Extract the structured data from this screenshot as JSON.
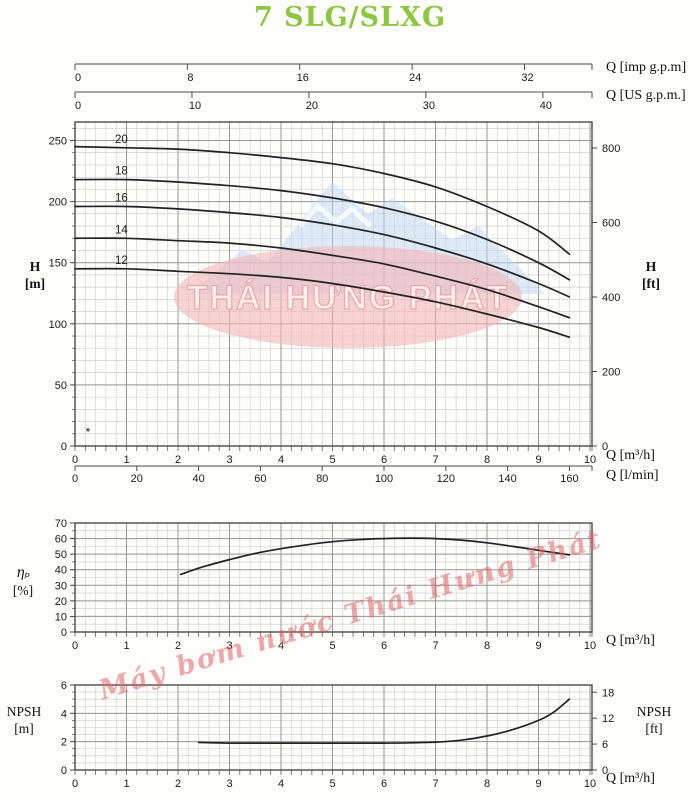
{
  "title": "7 SLG/SLXG",
  "colors": {
    "title": "#8dc63f",
    "curve": "#222222",
    "grid_minor": "#cccccc",
    "grid_major": "#979797",
    "border": "#4a4a4a",
    "tick_text": "#1a1a1a",
    "watermark_mountain": "#bdd5ef",
    "watermark_snow": "#ffffff",
    "watermark_ellipse": "#f3b5b8",
    "watermark_ellipse_text": "#fcf3f3",
    "watermark_ellipse_text_stroke": "#eba3a7",
    "watermark_script": "#e06666"
  },
  "watermark": {
    "ellipse_text": "THÁI HƯNG PHÁT",
    "script_text": "Máy bơm nước Thái Hưng Phát"
  },
  "labels": {
    "q_imp": "Q [imp g.p.m]",
    "q_us": "Q [US g.p.m.]",
    "q_m3h": "Q [m³/h]",
    "q_lmin": "Q [l/min]",
    "h_m_1": "H",
    "h_m_2": "[m]",
    "h_ft_1": "H",
    "h_ft_2": "[ft]",
    "eta_1": "ηₚ",
    "eta_2": "[%]",
    "npsh_m_1": "NPSH",
    "npsh_m_2": "[m]",
    "npsh_ft_1": "NPSH",
    "npsh_ft_2": "[ft]",
    "star": "*"
  },
  "top_scales": [
    {
      "label": "Q [imp g.p.m]",
      "units_per_m3h": 3.6662,
      "ticks": [
        0,
        8,
        16,
        24,
        32
      ]
    },
    {
      "label": "Q [US g.p.m.]",
      "units_per_m3h": 4.4029,
      "ticks": [
        0,
        10,
        20,
        30,
        40
      ]
    }
  ],
  "chart_data": [
    {
      "name": "head",
      "type": "line",
      "title": "Head vs flow curves",
      "xlabel": "Q [m³/h]",
      "x2label": "Q [l/min]",
      "ylabel": "H [m]",
      "y2label": "H [ft]",
      "xlim": [
        0,
        10.05
      ],
      "ylim": [
        0,
        265
      ],
      "grid": true,
      "x_ticks": [
        0,
        1,
        2,
        3,
        4,
        5,
        6,
        7,
        8,
        9,
        10
      ],
      "x_minor": 0.2,
      "y_ticks": [
        0,
        50,
        100,
        150,
        200,
        250
      ],
      "y_minor": 10,
      "x2_ticks": [
        0,
        20,
        40,
        60,
        80,
        100,
        120,
        140,
        160
      ],
      "x2_units_per_m3h": 16.6667,
      "y2_ticks": [
        0,
        200,
        400,
        600,
        800
      ],
      "y2_m_per_unit": 0.3048,
      "series": [
        {
          "name": "20",
          "points": [
            [
              0,
              245
            ],
            [
              1,
              244
            ],
            [
              2,
              243
            ],
            [
              3,
              240
            ],
            [
              4,
              236
            ],
            [
              5,
              231
            ],
            [
              6,
              223
            ],
            [
              7,
              212
            ],
            [
              8,
              196
            ],
            [
              9,
              176
            ],
            [
              9.6,
              157
            ]
          ]
        },
        {
          "name": "18",
          "points": [
            [
              0,
              218
            ],
            [
              1,
              218
            ],
            [
              2,
              216
            ],
            [
              3,
              213
            ],
            [
              4,
              209
            ],
            [
              5,
              203
            ],
            [
              6,
              195
            ],
            [
              7,
              184
            ],
            [
              8,
              169
            ],
            [
              9,
              150
            ],
            [
              9.6,
              136
            ]
          ]
        },
        {
          "name": "16",
          "points": [
            [
              0,
              196
            ],
            [
              1,
              196
            ],
            [
              2,
              194
            ],
            [
              3,
              191
            ],
            [
              4,
              187
            ],
            [
              5,
              181
            ],
            [
              6,
              173
            ],
            [
              7,
              162
            ],
            [
              8,
              149
            ],
            [
              9,
              133
            ],
            [
              9.6,
              122
            ]
          ]
        },
        {
          "name": "14",
          "points": [
            [
              0,
              170
            ],
            [
              1,
              170
            ],
            [
              2,
              168
            ],
            [
              3,
              166
            ],
            [
              4,
              162
            ],
            [
              5,
              156
            ],
            [
              6,
              149
            ],
            [
              7,
              139
            ],
            [
              8,
              128
            ],
            [
              9,
              114
            ],
            [
              9.6,
              105
            ]
          ]
        },
        {
          "name": "12",
          "points": [
            [
              0,
              145
            ],
            [
              1,
              145
            ],
            [
              2,
              143
            ],
            [
              3,
              141
            ],
            [
              4,
              138
            ],
            [
              5,
              133
            ],
            [
              6,
              126
            ],
            [
              7,
              118
            ],
            [
              8,
              108
            ],
            [
              9,
              97
            ],
            [
              9.6,
              89
            ]
          ]
        }
      ]
    },
    {
      "name": "efficiency",
      "type": "line",
      "title": "Efficiency curve",
      "xlabel": "Q [m³/h]",
      "ylabel": "ηₚ [%]",
      "xlim": [
        0,
        10.05
      ],
      "ylim": [
        0,
        70
      ],
      "grid": true,
      "x_ticks": [
        0,
        1,
        2,
        3,
        4,
        5,
        6,
        7,
        8,
        9,
        10
      ],
      "x_minor": 0.2,
      "y_ticks": [
        0,
        10,
        20,
        30,
        40,
        50,
        60,
        70
      ],
      "y_minor": 5,
      "series": [
        {
          "name": "efficiency",
          "points": [
            [
              2.05,
              37
            ],
            [
              2.5,
              42
            ],
            [
              3,
              46.5
            ],
            [
              3.5,
              50.5
            ],
            [
              4,
              53.5
            ],
            [
              4.5,
              56
            ],
            [
              5,
              58
            ],
            [
              5.5,
              59.3
            ],
            [
              6,
              60
            ],
            [
              6.5,
              60.3
            ],
            [
              7,
              60
            ],
            [
              7.5,
              59
            ],
            [
              8,
              57.3
            ],
            [
              8.5,
              55
            ],
            [
              9,
              52.5
            ],
            [
              9.6,
              49.5
            ]
          ]
        }
      ]
    },
    {
      "name": "npsh",
      "type": "line",
      "title": "NPSH curve",
      "xlabel": "Q [m³/h]",
      "ylabel": "NPSH [m]",
      "y2label": "NPSH [ft]",
      "xlim": [
        0,
        10.05
      ],
      "ylim": [
        0,
        6
      ],
      "grid": true,
      "x_ticks": [
        0,
        1,
        2,
        3,
        4,
        5,
        6,
        7,
        8,
        9,
        10
      ],
      "x_minor": 0.2,
      "y_ticks": [
        0,
        2,
        4,
        6
      ],
      "y_minor": 0.5,
      "y2_ticks": [
        0,
        6,
        12,
        18
      ],
      "y2_m_per_unit": 0.3048,
      "series": [
        {
          "name": "npsh",
          "points": [
            [
              2.4,
              1.95
            ],
            [
              3,
              1.9
            ],
            [
              4,
              1.9
            ],
            [
              5,
              1.9
            ],
            [
              6,
              1.9
            ],
            [
              6.5,
              1.92
            ],
            [
              7,
              1.97
            ],
            [
              7.5,
              2.1
            ],
            [
              8,
              2.4
            ],
            [
              8.5,
              2.85
            ],
            [
              9,
              3.5
            ],
            [
              9.3,
              4.1
            ],
            [
              9.6,
              5.0
            ]
          ]
        }
      ]
    }
  ]
}
